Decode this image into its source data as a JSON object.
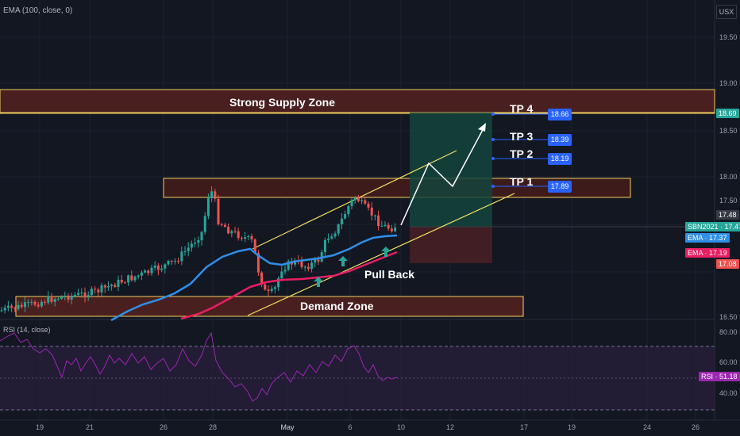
{
  "indicator_title": "EMA (100, close, 0)",
  "currency": "USX",
  "price_axis": [
    "19.50",
    "19.00",
    "18.50",
    "18.00",
    "17.50",
    "16.50"
  ],
  "rsi_title": "RSI (14, close)",
  "rsi_axis": [
    "80.00",
    "60.00",
    "40.00"
  ],
  "date_axis": [
    "19",
    "21",
    "26",
    "28",
    "May",
    "6",
    "10",
    "12",
    "17",
    "19",
    "24",
    "26"
  ],
  "zones": {
    "supply": "Strong Supply Zone",
    "demand": "Demand Zone",
    "pullback": "Pull Back"
  },
  "targets": [
    {
      "label": "TP 4",
      "value": "18.66"
    },
    {
      "label": "TP 3",
      "value": "18.39"
    },
    {
      "label": "TP 2",
      "value": "18.19"
    },
    {
      "label": "TP 1",
      "value": "17.89"
    }
  ],
  "price_tags": {
    "supply_line": "18.69",
    "last": "17.48",
    "symbol": "SBN2021 · 17.47",
    "ema_blue": "EMA · 17.37",
    "ema_red": "EMA · 17.19",
    "low": "17.08",
    "rsi": "RSI · 51.18"
  },
  "colors": {
    "background": "#131722",
    "zone_fill": "#4a1f1f",
    "zone_border": "#f0d060",
    "ema_blue": "#2f8fe8",
    "ema_red": "#e91e63",
    "candle_up": "#26a69a",
    "candle_down": "#ef5350",
    "target_badge": "#2962ff",
    "rsi_line": "#9c27b0"
  }
}
